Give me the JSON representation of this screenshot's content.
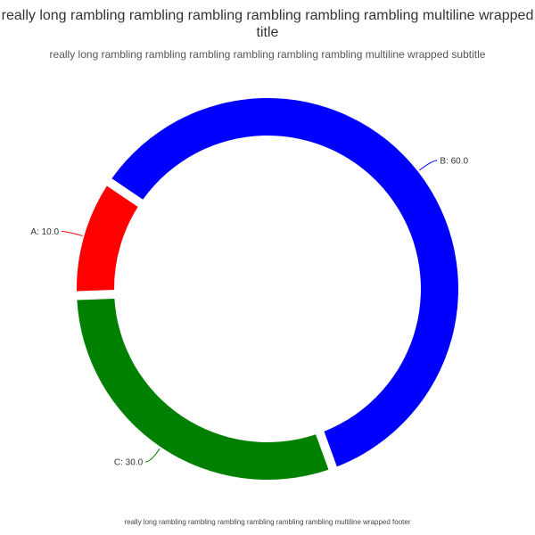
{
  "chart_data": {
    "type": "pie",
    "variant": "donut",
    "title": "really long rambling rambling rambling rambling rambling rambling multiline wrapped title",
    "subtitle": "really long rambling rambling rambling rambling rambling rambling multiline wrapped subtitle",
    "footer": "really long rambling rambling rambling rambling rambling rambling multiline wrapped footer",
    "categories": [
      "A",
      "B",
      "C"
    ],
    "values": [
      10.0,
      60.0,
      30.0
    ],
    "labels": [
      "A: 10.0",
      "B: 60.0",
      "C: 30.0"
    ],
    "colors": [
      "#ff0000",
      "#0000ff",
      "#008000"
    ],
    "legend": "none"
  }
}
